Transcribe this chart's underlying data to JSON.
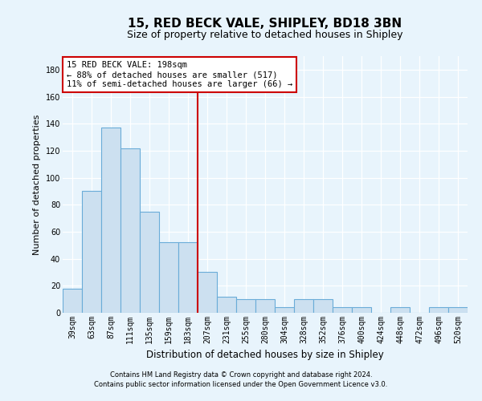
{
  "title": "15, RED BECK VALE, SHIPLEY, BD18 3BN",
  "subtitle": "Size of property relative to detached houses in Shipley",
  "xlabel": "Distribution of detached houses by size in Shipley",
  "ylabel": "Number of detached properties",
  "categories": [
    "39sqm",
    "63sqm",
    "87sqm",
    "111sqm",
    "135sqm",
    "159sqm",
    "183sqm",
    "207sqm",
    "231sqm",
    "255sqm",
    "280sqm",
    "304sqm",
    "328sqm",
    "352sqm",
    "376sqm",
    "400sqm",
    "424sqm",
    "448sqm",
    "472sqm",
    "496sqm",
    "520sqm"
  ],
  "values": [
    18,
    90,
    137,
    122,
    75,
    52,
    52,
    30,
    12,
    10,
    10,
    4,
    10,
    10,
    4,
    4,
    0,
    4,
    0,
    4,
    4
  ],
  "bar_color": "#cce0f0",
  "bar_edge_color": "#6aacd8",
  "ref_line_index": 7,
  "annotation_text": "15 RED BECK VALE: 198sqm\n← 88% of detached houses are smaller (517)\n11% of semi-detached houses are larger (66) →",
  "annotation_box_facecolor": "#ffffff",
  "annotation_box_edgecolor": "#cc0000",
  "ref_line_color": "#cc0000",
  "ylim_max": 190,
  "yticks": [
    0,
    20,
    40,
    60,
    80,
    100,
    120,
    140,
    160,
    180
  ],
  "footer_line1": "Contains HM Land Registry data © Crown copyright and database right 2024.",
  "footer_line2": "Contains public sector information licensed under the Open Government Licence v3.0.",
  "background_color": "#e8f4fc",
  "grid_color": "#ffffff",
  "title_fontsize": 11,
  "subtitle_fontsize": 9,
  "tick_fontsize": 7,
  "ylabel_fontsize": 8,
  "xlabel_fontsize": 8.5,
  "footer_fontsize": 6,
  "annotation_fontsize": 7.5
}
